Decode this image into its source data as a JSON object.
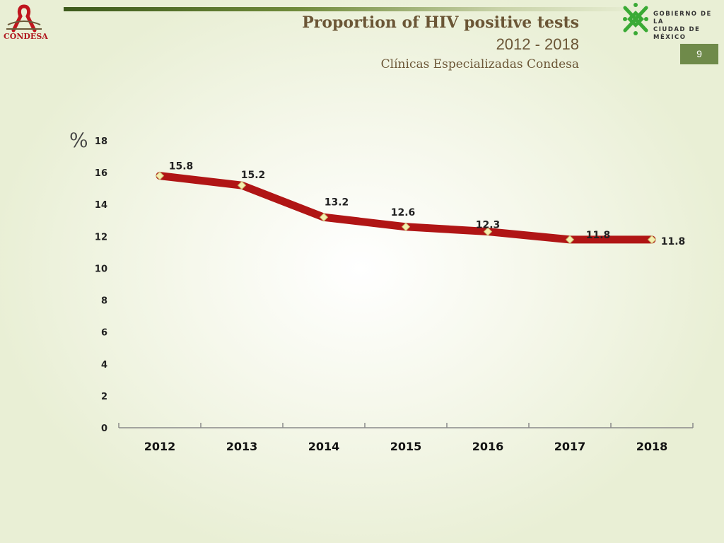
{
  "header": {
    "title": "Proportion of HIV positive tests",
    "years": "2012 - 2018",
    "clinic": "Clínicas Especializadas Condesa"
  },
  "logo_left": {
    "brand": "CONDESA",
    "color": "#b0171e"
  },
  "gov_logo": {
    "line1": "GOBIERNO DE LA",
    "line2": "CIUDAD DE MÉXICO",
    "color": "#3aaa35"
  },
  "page_number": "9",
  "chart_data": {
    "type": "line",
    "title": "Proportion of HIV positive tests",
    "ylabel": "%",
    "xlabel": "",
    "categories": [
      "2012",
      "2013",
      "2014",
      "2015",
      "2016",
      "2017",
      "2018"
    ],
    "series": [
      {
        "values": [
          15.8,
          15.2,
          13.2,
          12.6,
          12.3,
          11.8,
          11.8
        ],
        "color": "#b01515",
        "marker_color": "#f3eeb0"
      }
    ],
    "data_labels": [
      "15.8",
      "15.2",
      "13.2",
      "12.6",
      "12.3",
      "11.8",
      "11.8"
    ],
    "yticks": [
      0,
      2,
      4,
      6,
      8,
      10,
      12,
      14,
      16,
      18
    ],
    "ylim": [
      0,
      18
    ],
    "grid": false,
    "legend": "none"
  }
}
